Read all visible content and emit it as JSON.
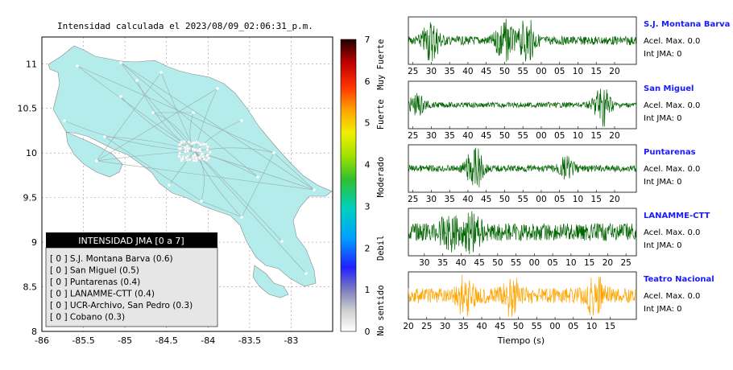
{
  "map": {
    "title": "Intensidad calculada el 2023/08/09_02:06:31_p.m.",
    "x_ticks": [
      "-86",
      "-85.5",
      "-85",
      "-84.5",
      "-84",
      "-83.5",
      "-83"
    ],
    "y_ticks": [
      "11",
      "10.5",
      "10",
      "9.5",
      "9",
      "8.5",
      "8"
    ],
    "xlim": [
      -86,
      -82.5
    ],
    "ylim": [
      8,
      11.3
    ],
    "land_color": "#b4ecec",
    "background": "#ffffff"
  },
  "colorbar": {
    "ticks": [
      "0",
      "1",
      "2",
      "3",
      "4",
      "5",
      "6",
      "7"
    ],
    "labels": [
      "No sentido",
      "Debil",
      "Moderado",
      "Fuerte",
      "Muy Fuerte"
    ],
    "range": [
      0,
      7
    ]
  },
  "legend": {
    "title": "INTENSIDAD JMA [0 a 7]",
    "items": [
      "[ 0 ]  S.J. Montana Barva (0.6)",
      "[ 0 ]  San Miguel (0.5)",
      "[ 0 ]  Puntarenas (0.4)",
      "[ 0 ]  LANAMME-CTT (0.4)",
      "[ 0 ]  UCR-Archivo, San Pedro (0.3)",
      "[ 0 ]  Cobano (0.3)"
    ]
  },
  "chart_data": [
    {
      "type": "line",
      "title": "Intensidad calculada el 2023/08/09_02:06:31_p.m.",
      "note": "map of Costa Rica with station points"
    },
    {
      "type": "line",
      "station": "S.J. Montana Barva",
      "accel_text": "Acel. Max. 0.0",
      "int_text": "Int JMA: 0",
      "tick_labels": [
        "25",
        "30",
        "35",
        "40",
        "45",
        "50",
        "55",
        "00",
        "05",
        "10",
        "15",
        "20"
      ],
      "color": "#006400",
      "bursts": [
        [
          0.1,
          0.9
        ],
        [
          0.42,
          1.0
        ],
        [
          0.52,
          0.95
        ]
      ],
      "base_amp": 0.2
    },
    {
      "type": "line",
      "station": "San Miguel",
      "accel_text": "Acel. Max. 0.0",
      "int_text": "Int JMA: 0",
      "tick_labels": [
        "25",
        "30",
        "35",
        "40",
        "45",
        "50",
        "55",
        "00",
        "05",
        "10",
        "15",
        "20"
      ],
      "color": "#006400",
      "bursts": [
        [
          0.04,
          0.45
        ],
        [
          0.85,
          1.0
        ]
      ],
      "base_amp": 0.12
    },
    {
      "type": "line",
      "station": "Puntarenas",
      "accel_text": "Acel. Max. 0.0",
      "int_text": "Int JMA: 0",
      "tick_labels": [
        "25",
        "30",
        "35",
        "40",
        "45",
        "50",
        "55",
        "00",
        "05",
        "10",
        "15",
        "20"
      ],
      "color": "#006400",
      "bursts": [
        [
          0.29,
          1.0
        ],
        [
          0.69,
          0.45
        ]
      ],
      "base_amp": 0.15
    },
    {
      "type": "line",
      "station": "LANAMME-CTT",
      "accel_text": "Acel. Max. 0.0",
      "int_text": "Int JMA: 0",
      "tick_labels": [
        "30",
        "35",
        "40",
        "45",
        "50",
        "55",
        "00",
        "05",
        "10",
        "15",
        "20",
        "25"
      ],
      "color": "#006400",
      "bursts": [
        [
          0.28,
          1.0
        ],
        [
          0.18,
          0.7
        ]
      ],
      "base_amp": 0.4
    },
    {
      "type": "line",
      "station": "Teatro Nacional",
      "accel_text": "Acel. Max. 0.0",
      "int_text": "Int JMA: 0",
      "tick_labels": [
        "20",
        "25",
        "30",
        "35",
        "40",
        "45",
        "50",
        "55",
        "00",
        "05",
        "10",
        "15"
      ],
      "color": "#ffa500",
      "bursts": [
        [
          0.25,
          0.9
        ],
        [
          0.45,
          0.8
        ],
        [
          0.82,
          0.85
        ]
      ],
      "base_amp": 0.35,
      "xlabel": "Tiempo (s)"
    }
  ]
}
